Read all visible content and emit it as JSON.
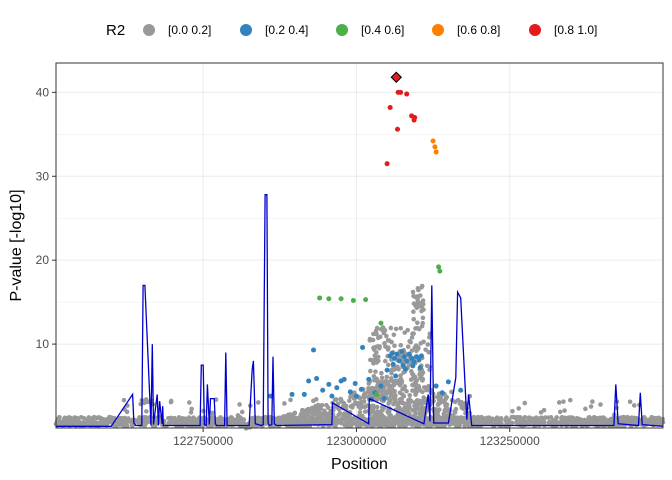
{
  "chart_data": {
    "type": "scatter",
    "title": "",
    "xlabel": "Position",
    "ylabel": "P-value [-log10]",
    "xlim": [
      122510000,
      123500000
    ],
    "ylim": [
      0,
      43.5
    ],
    "x_ticks": [
      122750000,
      123000000,
      123250000
    ],
    "x_tick_labels": [
      "122750000",
      "123000000",
      "123250000"
    ],
    "y_ticks": [
      10,
      20,
      30,
      40
    ],
    "y_tick_labels": [
      "10",
      "20",
      "30",
      "40"
    ],
    "grid": true,
    "legend": {
      "title": "R2",
      "placement": "top",
      "entries": [
        {
          "label": "[0.0  0.2]",
          "color": "#999999"
        },
        {
          "label": "[0.2  0.4]",
          "color": "#3182bd"
        },
        {
          "label": "[0.4  0.6]",
          "color": "#4daf4a"
        },
        {
          "label": "[0.6  0.8]",
          "color": "#ff8000"
        },
        {
          "label": "[0.8  1.0]",
          "color": "#e41a1c"
        }
      ]
    },
    "lead_snp": {
      "x": 123065000,
      "y": 41.8,
      "marker": "diamond",
      "color": "#e41a1c"
    },
    "series": [
      {
        "name": "[0.8  1.0]",
        "color": "#e41a1c",
        "points": [
          [
            123068000,
            40.0
          ],
          [
            123072000,
            40.0
          ],
          [
            123082000,
            39.8
          ],
          [
            123055000,
            38.2
          ],
          [
            123090000,
            37.2
          ],
          [
            123095000,
            37.0
          ],
          [
            123094000,
            36.7
          ],
          [
            123067000,
            35.6
          ],
          [
            123050000,
            31.5
          ]
        ]
      },
      {
        "name": "[0.6  0.8]",
        "color": "#ff8000",
        "points": [
          [
            123125000,
            34.2
          ],
          [
            123128000,
            33.5
          ],
          [
            123130000,
            32.9
          ]
        ]
      },
      {
        "name": "[0.4  0.6]",
        "color": "#4daf4a",
        "points": [
          [
            123134000,
            19.2
          ],
          [
            123136000,
            18.7
          ],
          [
            122940000,
            15.5
          ],
          [
            122955000,
            15.4
          ],
          [
            122975000,
            15.4
          ],
          [
            122995000,
            15.2
          ],
          [
            123015000,
            15.3
          ],
          [
            123040000,
            12.5
          ],
          [
            123033000,
            4.0
          ]
        ]
      },
      {
        "name": "[0.2  0.4]",
        "color": "#3182bd",
        "points": [
          [
            122930000,
            9.3
          ],
          [
            122975000,
            5.6
          ],
          [
            123010000,
            9.6
          ],
          [
            123055000,
            8.6
          ],
          [
            123058000,
            8.9
          ],
          [
            123062000,
            8.3
          ],
          [
            123066000,
            8.8
          ],
          [
            123070000,
            8.0
          ],
          [
            123074000,
            9.1
          ],
          [
            123078000,
            8.5
          ],
          [
            123082000,
            8.0
          ],
          [
            123086000,
            8.8
          ],
          [
            123090000,
            8.3
          ],
          [
            123094000,
            7.9
          ],
          [
            123098000,
            8.5
          ],
          [
            123102000,
            8.1
          ],
          [
            123106000,
            8.6
          ],
          [
            123060000,
            7.6
          ],
          [
            123076000,
            7.5
          ],
          [
            123092000,
            7.4
          ],
          [
            123104000,
            7.2
          ],
          [
            123050000,
            6.9
          ],
          [
            123064000,
            6.2
          ],
          [
            123080000,
            7.0
          ],
          [
            122922000,
            5.6
          ],
          [
            122935000,
            5.9
          ],
          [
            122955000,
            5.2
          ],
          [
            122980000,
            5.8
          ],
          [
            122998000,
            5.3
          ],
          [
            123020000,
            5.8
          ],
          [
            123040000,
            5.0
          ],
          [
            122945000,
            4.5
          ],
          [
            122968000,
            4.8
          ],
          [
            122990000,
            4.3
          ],
          [
            123008000,
            4.6
          ],
          [
            123030000,
            4.2
          ],
          [
            122915000,
            4.0
          ],
          [
            122960000,
            3.8
          ],
          [
            123000000,
            3.8
          ],
          [
            123045000,
            3.5
          ],
          [
            123130000,
            5.0
          ],
          [
            123150000,
            5.5
          ],
          [
            123140000,
            4.2
          ],
          [
            123170000,
            4.5
          ],
          [
            122860000,
            3.8
          ],
          [
            122895000,
            4.0
          ],
          [
            123025000,
            3.4
          ]
        ]
      }
    ],
    "recombination_rate_line": {
      "color": "#0000cc",
      "x": [
        122510000,
        122600000,
        122635000,
        122637000,
        122640000,
        122650000,
        122652000,
        122655000,
        122665000,
        122667000,
        122669000,
        122675000,
        122677000,
        122679000,
        122683000,
        122684000,
        122685000,
        122690000,
        122745000,
        122747000,
        122750000,
        122752000,
        122755000,
        122757000,
        122760000,
        122762000,
        122768000,
        122770000,
        122772000,
        122785000,
        122787000,
        122789000,
        122825000,
        122830000,
        122832000,
        122835000,
        122845000,
        122848000,
        122851000,
        122854000,
        122856000,
        122858000,
        122862000,
        122864000,
        122866000,
        122870000,
        122960000,
        122961000,
        123020000,
        123021000,
        123110000,
        123117000,
        123120000,
        123123000,
        123126000,
        123150000,
        123162000,
        123165000,
        123170000,
        123180000,
        123183000,
        123188000,
        123420000,
        123423000,
        123427000,
        123460000,
        123463000,
        123466000,
        123500000
      ],
      "y": [
        0.2,
        0.2,
        4.0,
        0.6,
        0.3,
        0.3,
        17.0,
        17.0,
        0.3,
        10.0,
        0.4,
        4.0,
        0.3,
        3.2,
        0.5,
        2.6,
        0.3,
        0.3,
        0.3,
        7.5,
        7.5,
        0.4,
        0.3,
        5.2,
        0.4,
        3.5,
        3.5,
        0.5,
        0.3,
        0.3,
        9.0,
        0.3,
        0.3,
        7.0,
        8.0,
        0.5,
        0.3,
        0.4,
        27.8,
        27.8,
        0.6,
        0.3,
        0.4,
        8.5,
        0.5,
        0.3,
        0.4,
        3.0,
        0.5,
        3.5,
        0.5,
        4.0,
        0.8,
        17.0,
        0.6,
        0.6,
        6.0,
        16.2,
        15.5,
        1.0,
        4.0,
        0.3,
        0.3,
        5.2,
        0.5,
        0.3,
        4.2,
        0.4,
        0.2
      ]
    }
  }
}
